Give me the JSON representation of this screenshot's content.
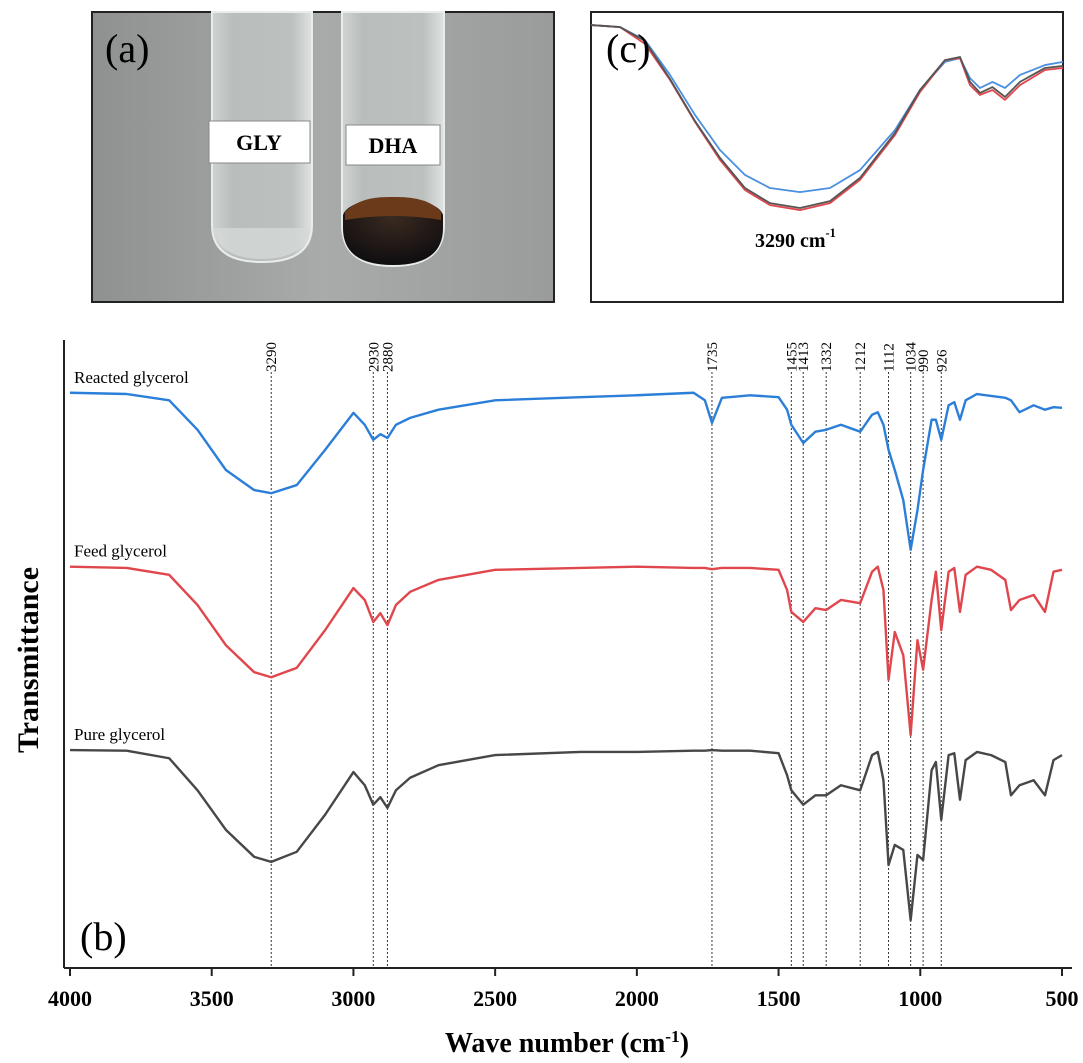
{
  "photo": {
    "panel_label": "(a)",
    "tubes": [
      "GLY",
      "DHA"
    ]
  },
  "chart_data": [
    {
      "type": "line",
      "panel_label": "(b)",
      "ylabel": "Transmittance",
      "xlabel": {
        "text": "Wave number (cm",
        "sup": "-1",
        "end": ")"
      },
      "xlim": [
        4000,
        500
      ],
      "xticks": [
        4000,
        3500,
        3000,
        2500,
        2000,
        1500,
        1000,
        500
      ],
      "ylim": [
        0,
        100
      ],
      "markers": [
        3290,
        2930,
        2880,
        1735,
        1455,
        1413,
        1332,
        1212,
        1112,
        1034,
        990,
        926
      ],
      "x": [
        4000,
        3800,
        3650,
        3550,
        3450,
        3350,
        3290,
        3200,
        3100,
        3000,
        2960,
        2930,
        2905,
        2880,
        2850,
        2800,
        2700,
        2500,
        2200,
        2000,
        1800,
        1760,
        1735,
        1700,
        1600,
        1500,
        1470,
        1455,
        1413,
        1370,
        1332,
        1280,
        1212,
        1170,
        1150,
        1130,
        1112,
        1090,
        1060,
        1034,
        1010,
        990,
        960,
        945,
        926,
        900,
        880,
        860,
        840,
        800,
        750,
        700,
        680,
        650,
        600,
        560,
        530,
        500
      ],
      "series": [
        {
          "name": "Reacted glycerol",
          "color": "#2b7fd8",
          "values": [
            91.6,
            91.4,
            90.4,
            85.7,
            79.3,
            76.1,
            75.6,
            76.9,
            82.5,
            88.4,
            86.5,
            84.1,
            85.0,
            84.4,
            86.5,
            87.6,
            88.9,
            90.4,
            90.9,
            91.2,
            91.6,
            90.4,
            86.8,
            90.8,
            91.2,
            90.9,
            88.9,
            86.5,
            83.6,
            85.4,
            85.7,
            86.5,
            85.4,
            88.1,
            88.5,
            86.5,
            82.5,
            79.3,
            74.5,
            66.6,
            72.9,
            79.3,
            87.3,
            87.3,
            84.1,
            89.6,
            90.1,
            87.3,
            90.4,
            91.4,
            91.1,
            90.8,
            90.4,
            88.5,
            89.6,
            88.9,
            89.3,
            89.2
          ]
        },
        {
          "name": "Feed glycerol",
          "color": "#e0474d",
          "values": [
            63.9,
            63.7,
            62.6,
            57.8,
            51.4,
            47.1,
            46.3,
            47.8,
            53.8,
            60.5,
            58.6,
            55.1,
            56.5,
            54.6,
            57.8,
            59.9,
            61.8,
            63.4,
            63.7,
            63.9,
            63.7,
            63.7,
            63.5,
            63.7,
            63.7,
            63.4,
            60.2,
            56.7,
            55.1,
            57.3,
            57.0,
            58.6,
            58.1,
            63.1,
            63.9,
            60.2,
            45.9,
            53.5,
            49.8,
            37.1,
            52.2,
            47.5,
            58.6,
            63.1,
            53.8,
            63.1,
            63.7,
            56.7,
            62.6,
            63.9,
            63.4,
            61.8,
            57.0,
            58.6,
            59.4,
            56.7,
            63.1,
            63.4
          ]
        },
        {
          "name": "Pure glycerol",
          "color": "#474747",
          "values": [
            34.7,
            34.6,
            33.4,
            28.3,
            22.0,
            17.7,
            16.9,
            18.5,
            24.4,
            31.2,
            29.1,
            26.0,
            27.2,
            25.5,
            28.3,
            30.3,
            32.3,
            33.9,
            34.4,
            34.4,
            34.6,
            34.6,
            34.7,
            34.6,
            34.6,
            34.2,
            30.7,
            28.3,
            26.0,
            27.5,
            27.5,
            29.1,
            28.3,
            33.9,
            34.4,
            29.9,
            16.4,
            19.6,
            18.8,
            7.6,
            18.0,
            17.2,
            31.5,
            32.8,
            23.6,
            33.9,
            34.2,
            26.8,
            33.1,
            34.4,
            33.9,
            32.8,
            27.5,
            29.1,
            29.9,
            27.5,
            33.1,
            33.9
          ]
        }
      ]
    },
    {
      "type": "line",
      "panel_label": "(c)",
      "annotation": {
        "text": "3290 cm",
        "sup": "-1"
      },
      "xlim": [
        3708,
        2764
      ],
      "ylim": [
        0,
        100
      ],
      "x": [
        3708,
        3650,
        3600,
        3550,
        3500,
        3450,
        3400,
        3350,
        3290,
        3230,
        3170,
        3100,
        3050,
        3000,
        2970,
        2950,
        2930,
        2905,
        2880,
        2850,
        2800,
        2764
      ],
      "series": [
        {
          "color": "#4a8fe0",
          "values": [
            95.5,
            94.8,
            90.3,
            78.3,
            64.5,
            52.4,
            43.8,
            39.3,
            37.9,
            39.3,
            45.5,
            59.3,
            73.1,
            82.8,
            84.1,
            77.2,
            73.8,
            75.9,
            73.8,
            78.3,
            81.7,
            82.8
          ]
        },
        {
          "color": "#e0474d",
          "values": [
            95.5,
            94.8,
            89.0,
            76.6,
            62.1,
            49.0,
            38.6,
            33.4,
            31.7,
            34.1,
            42.1,
            57.6,
            72.4,
            83.4,
            84.1,
            74.8,
            71.4,
            73.1,
            69.7,
            74.8,
            80.0,
            80.7
          ]
        },
        {
          "color": "#555555",
          "values": [
            95.5,
            94.8,
            90.0,
            76.9,
            62.4,
            49.7,
            39.3,
            34.1,
            32.4,
            34.8,
            42.8,
            58.3,
            73.1,
            83.4,
            84.5,
            75.9,
            72.1,
            74.1,
            70.7,
            75.9,
            80.7,
            81.4
          ]
        }
      ]
    }
  ]
}
